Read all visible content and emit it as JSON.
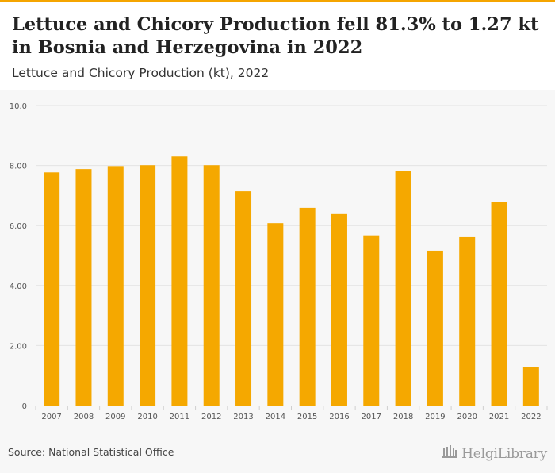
{
  "header": {
    "title": "Lettuce and Chicory Production fell 81.3% to 1.27 kt in Bosnia and Herzegovina in 2022",
    "subtitle": "Lettuce and Chicory Production (kt), 2022"
  },
  "footer": {
    "source": "Source: National Statistical Office",
    "logo_text": "HelgiLibrary"
  },
  "colors": {
    "bar": "#f5a800",
    "accent": "#f5a500",
    "grid": "#e3e3e3",
    "tick": "#555555"
  },
  "chart_data": {
    "type": "bar",
    "categories": [
      "2007",
      "2008",
      "2009",
      "2010",
      "2011",
      "2012",
      "2013",
      "2014",
      "2015",
      "2016",
      "2017",
      "2018",
      "2019",
      "2020",
      "2021",
      "2022"
    ],
    "values": [
      7.77,
      7.88,
      7.98,
      8.01,
      8.3,
      8.01,
      7.14,
      6.08,
      6.59,
      6.38,
      5.67,
      7.83,
      5.16,
      5.61,
      6.79,
      1.27
    ],
    "yticks": [
      "0",
      "2.00",
      "4.00",
      "6.00",
      "8.00",
      "10.0"
    ],
    "ytick_values": [
      0,
      2,
      4,
      6,
      8,
      10
    ],
    "ylim": [
      0,
      10
    ],
    "grid": true
  }
}
